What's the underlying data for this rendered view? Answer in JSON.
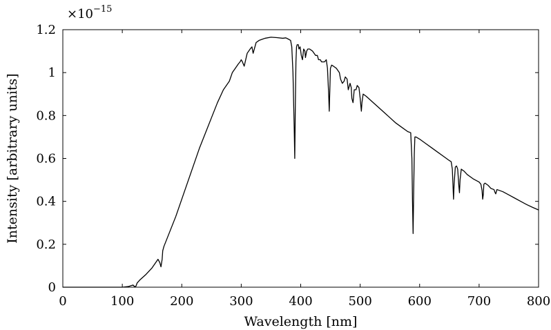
{
  "chart_data": {
    "type": "line",
    "title": "",
    "xlabel": "Wavelength [nm]",
    "ylabel": "Intensity [arbitrary units]",
    "y_scale_label": {
      "base": "×10",
      "exponent": "−15"
    },
    "xlim": [
      0,
      800
    ],
    "ylim": [
      0,
      1.2
    ],
    "x_ticks": [
      0,
      100,
      200,
      300,
      400,
      500,
      600,
      700,
      800
    ],
    "y_ticks": [
      0,
      0.2,
      0.4,
      0.6,
      0.8,
      1,
      1.2
    ],
    "grid": false,
    "legend": "none",
    "colors": {
      "line": "#000000",
      "axes": "#000000"
    },
    "series": [
      {
        "x": [
          0,
          100,
          110,
          118,
          121,
          123,
          125,
          130,
          140,
          150,
          160,
          163,
          165,
          167,
          168,
          170,
          180,
          190,
          200,
          210,
          220,
          230,
          240,
          250,
          260,
          270,
          280,
          285,
          290,
          295,
          298,
          300,
          302,
          305,
          310,
          315,
          318,
          320,
          325,
          330,
          340,
          350,
          360,
          370,
          375,
          380,
          383,
          385,
          387,
          389,
          390,
          391,
          392,
          393,
          394,
          396,
          397,
          399,
          401,
          403,
          405,
          407,
          408,
          410,
          412,
          415,
          420,
          425,
          428,
          430,
          433,
          435,
          440,
          443,
          445,
          447,
          448,
          450,
          452,
          455,
          460,
          465,
          467,
          470,
          473,
          475,
          478,
          480,
          483,
          485,
          486,
          488,
          490,
          493,
          495,
          498,
          500,
          502,
          503,
          505,
          510,
          520,
          530,
          540,
          550,
          560,
          570,
          580,
          585,
          587,
          588,
          589,
          590,
          591,
          592,
          594,
          600,
          610,
          620,
          630,
          640,
          650,
          653,
          655,
          656,
          657,
          658,
          660,
          662,
          664,
          666,
          667,
          668,
          670,
          675,
          680,
          690,
          700,
          703,
          705,
          706,
          707,
          708,
          710,
          715,
          720,
          725,
          727,
          728,
          730,
          740,
          750,
          760,
          770,
          780,
          790,
          800
        ],
        "y": [
          0,
          0,
          0.003,
          0.01,
          0.002,
          0.005,
          0.02,
          0.035,
          0.06,
          0.09,
          0.13,
          0.115,
          0.095,
          0.13,
          0.17,
          0.19,
          0.26,
          0.33,
          0.41,
          0.49,
          0.57,
          0.65,
          0.72,
          0.79,
          0.86,
          0.92,
          0.96,
          1.0,
          1.02,
          1.04,
          1.05,
          1.06,
          1.05,
          1.03,
          1.09,
          1.11,
          1.12,
          1.09,
          1.14,
          1.15,
          1.16,
          1.165,
          1.163,
          1.16,
          1.162,
          1.155,
          1.15,
          1.12,
          1.0,
          0.75,
          0.6,
          0.85,
          1.05,
          1.12,
          1.13,
          1.13,
          1.11,
          1.12,
          1.08,
          1.06,
          1.11,
          1.1,
          1.07,
          1.1,
          1.11,
          1.11,
          1.1,
          1.08,
          1.08,
          1.06,
          1.06,
          1.05,
          1.05,
          1.06,
          1.02,
          0.9,
          0.82,
          1.02,
          1.035,
          1.03,
          1.02,
          1.0,
          0.97,
          0.95,
          0.96,
          0.98,
          0.97,
          0.92,
          0.95,
          0.93,
          0.88,
          0.86,
          0.92,
          0.92,
          0.94,
          0.93,
          0.88,
          0.82,
          0.86,
          0.9,
          0.89,
          0.865,
          0.84,
          0.815,
          0.79,
          0.765,
          0.745,
          0.725,
          0.72,
          0.6,
          0.4,
          0.25,
          0.45,
          0.62,
          0.7,
          0.7,
          0.69,
          0.67,
          0.65,
          0.63,
          0.61,
          0.59,
          0.585,
          0.55,
          0.48,
          0.41,
          0.48,
          0.56,
          0.565,
          0.55,
          0.47,
          0.44,
          0.5,
          0.55,
          0.54,
          0.525,
          0.505,
          0.49,
          0.48,
          0.45,
          0.41,
          0.43,
          0.48,
          0.485,
          0.475,
          0.46,
          0.455,
          0.44,
          0.435,
          0.455,
          0.445,
          0.43,
          0.415,
          0.4,
          0.385,
          0.372,
          0.36
        ]
      }
    ]
  }
}
